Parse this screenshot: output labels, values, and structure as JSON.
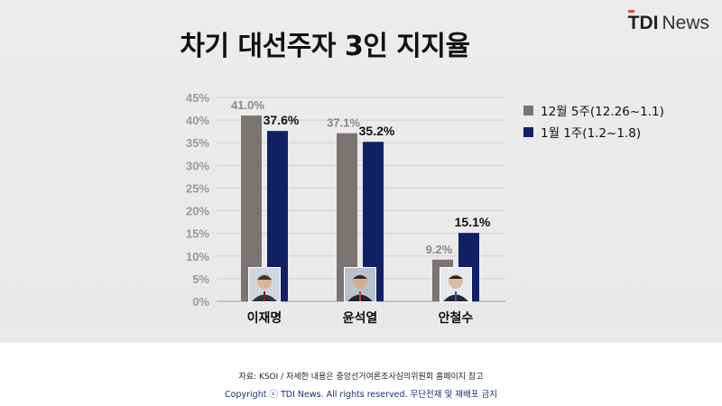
{
  "title": "차기 대선주자 3인 지지율",
  "brand": {
    "mark": "TDI",
    "word": "News",
    "accent": "#e04a3a"
  },
  "footer": {
    "source": "자료: KSOI / 자세한 내용은 중앙선거여론조사심의위원회 홈페이지 참고",
    "copyright": "Copyright ⓒ TDI News. All rights reserved. 무단전재 및 재배포 금지"
  },
  "chart_data": {
    "type": "bar",
    "categories": [
      "이재명",
      "윤석열",
      "안철수"
    ],
    "series": [
      {
        "name": "12월 5주(12.26~1.1)",
        "values": [
          41.0,
          37.1,
          9.2
        ],
        "labels": [
          "41.0%",
          "37.1%",
          "9.2%"
        ],
        "color": "#7a7472"
      },
      {
        "name": "1월 1주(1.2~1.8)",
        "values": [
          37.6,
          35.2,
          15.1
        ],
        "labels": [
          "37.6%",
          "35.2%",
          "15.1%"
        ],
        "color": "#122066"
      }
    ],
    "yticks": [
      "0%",
      "5%",
      "10%",
      "15%",
      "20%",
      "25%",
      "30%",
      "35%",
      "40%",
      "45%"
    ],
    "ylim": [
      0,
      45
    ],
    "grid": true,
    "legend": "right"
  }
}
